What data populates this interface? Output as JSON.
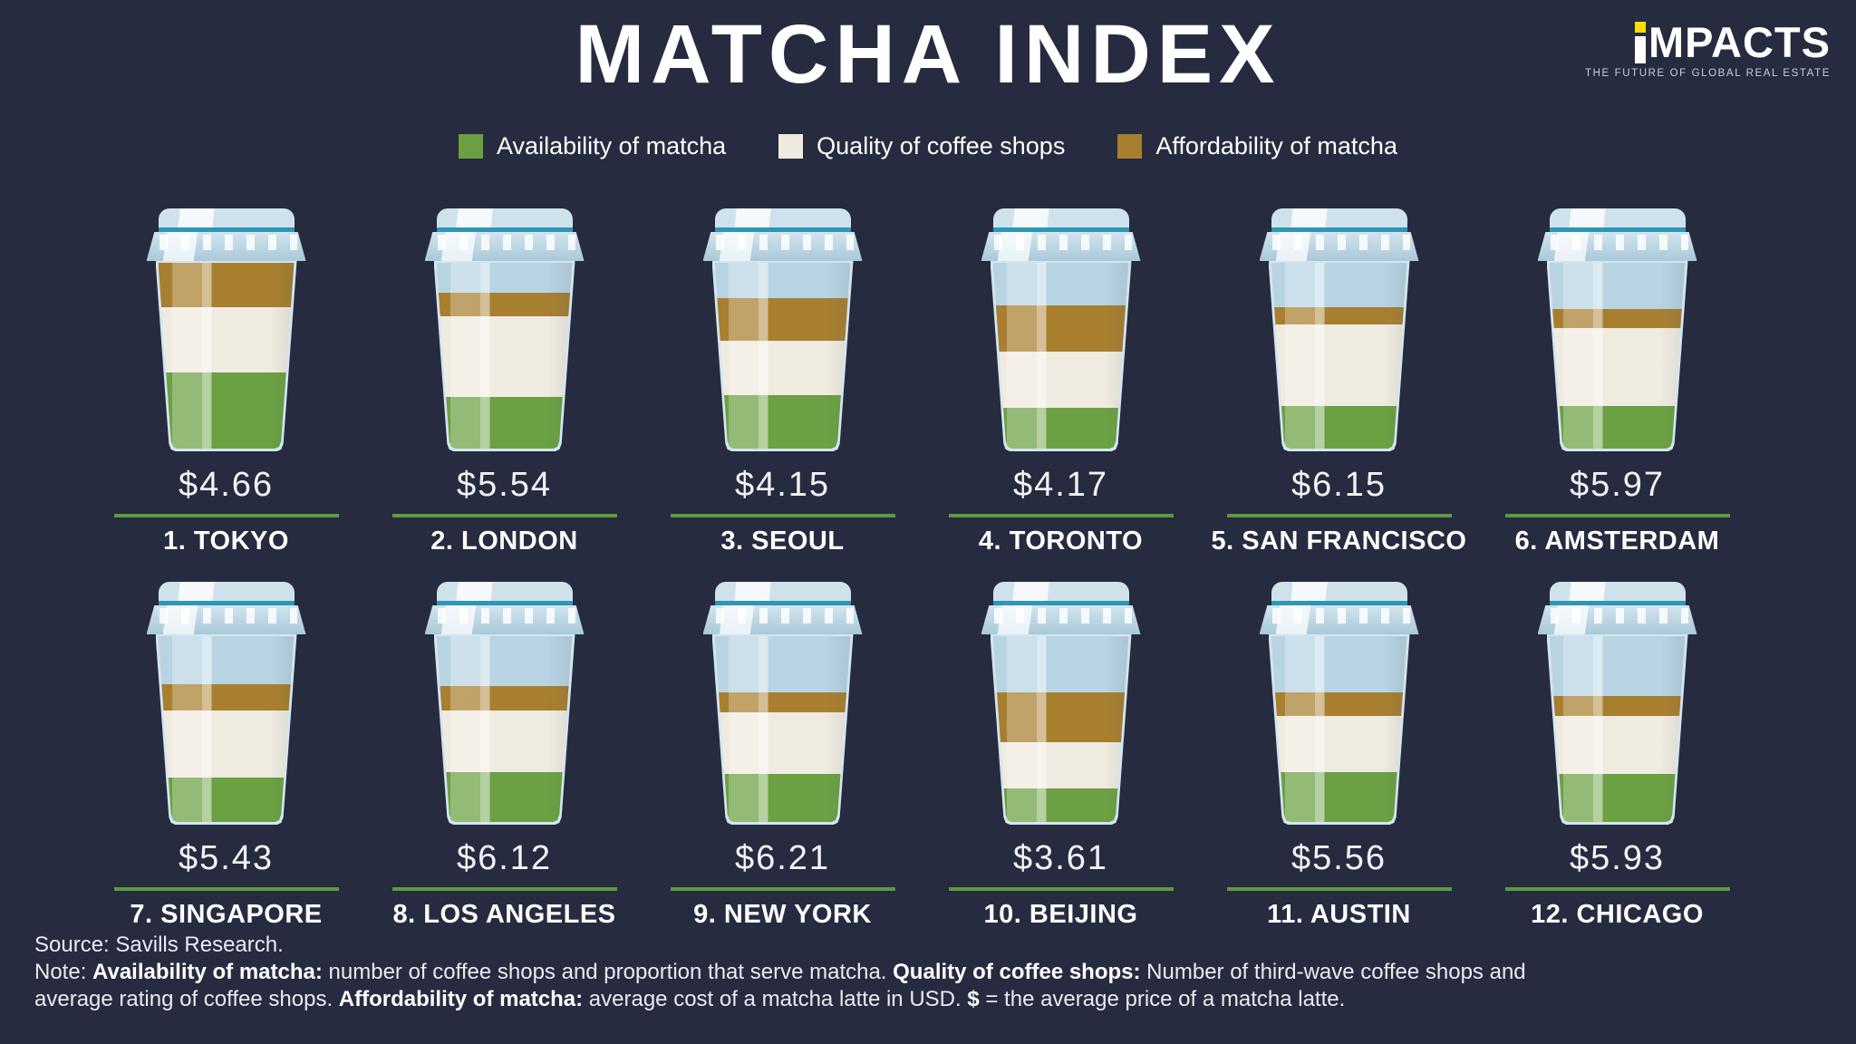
{
  "title": "MATCHA INDEX",
  "logo": {
    "brand": "iMPACTS",
    "display_rest": "MPACTS",
    "tagline": "THE FUTURE OF GLOBAL REAL ESTATE",
    "dot_color": "#ffdf00"
  },
  "legend": {
    "items": [
      {
        "label": "Availability of matcha",
        "color": "#6b9f42"
      },
      {
        "label": "Quality of coffee shops",
        "color": "#efeadf"
      },
      {
        "label": "Affordability of matcha",
        "color": "#a87f2f"
      }
    ]
  },
  "chart_data": {
    "type": "bar",
    "subtype": "stacked-cup-infographic",
    "title": "MATCHA INDEX",
    "description": "Each coffee cup is a stacked bar; segment heights are percent of cup height (top blue portion = unfilled cup). Dollar value = average price of a matcha latte.",
    "segment_order_top_to_bottom": [
      "empty",
      "affordability",
      "quality",
      "availability"
    ],
    "legend_position": "top",
    "cities": [
      {
        "rank": 1,
        "name": "TOKYO",
        "label": "1. TOKYO",
        "price": "$4.66",
        "segments": {
          "empty": 0,
          "affordability": 24,
          "quality": 35,
          "availability": 41
        }
      },
      {
        "rank": 2,
        "name": "LONDON",
        "label": "2. LONDON",
        "price": "$5.54",
        "segments": {
          "empty": 16,
          "affordability": 13,
          "quality": 43,
          "availability": 28
        }
      },
      {
        "rank": 3,
        "name": "SEOUL",
        "label": "3. SEOUL",
        "price": "$4.15",
        "segments": {
          "empty": 19,
          "affordability": 23,
          "quality": 29,
          "availability": 29
        }
      },
      {
        "rank": 4,
        "name": "TORONTO",
        "label": "4. TORONTO",
        "price": "$4.17",
        "segments": {
          "empty": 23,
          "affordability": 25,
          "quality": 30,
          "availability": 22
        }
      },
      {
        "rank": 5,
        "name": "SAN FRANCISCO",
        "label": "5. SAN FRANCISCO",
        "price": "$6.15",
        "segments": {
          "empty": 24,
          "affordability": 9,
          "quality": 44,
          "availability": 23
        }
      },
      {
        "rank": 6,
        "name": "AMSTERDAM",
        "label": "6. AMSTERDAM",
        "price": "$5.97",
        "segments": {
          "empty": 25,
          "affordability": 10,
          "quality": 42,
          "availability": 23
        }
      },
      {
        "rank": 7,
        "name": "SINGAPORE",
        "label": "7. SINGAPORE",
        "price": "$5.43",
        "segments": {
          "empty": 26,
          "affordability": 14,
          "quality": 36,
          "availability": 24
        }
      },
      {
        "rank": 8,
        "name": "LOS ANGELES",
        "label": "8. LOS ANGELES",
        "price": "$6.12",
        "segments": {
          "empty": 27,
          "affordability": 13,
          "quality": 33,
          "availability": 27
        }
      },
      {
        "rank": 9,
        "name": "NEW YORK",
        "label": "9. NEW YORK",
        "price": "$6.21",
        "segments": {
          "empty": 30,
          "affordability": 11,
          "quality": 33,
          "availability": 26
        }
      },
      {
        "rank": 10,
        "name": "BEIJING",
        "label": "10. BEIJING",
        "price": "$3.61",
        "segments": {
          "empty": 30,
          "affordability": 27,
          "quality": 25,
          "availability": 18
        }
      },
      {
        "rank": 11,
        "name": "AUSTIN",
        "label": "11. AUSTIN",
        "price": "$5.56",
        "segments": {
          "empty": 30,
          "affordability": 13,
          "quality": 30,
          "availability": 27
        }
      },
      {
        "rank": 12,
        "name": "CHICAGO",
        "label": "12. CHICAGO",
        "price": "$5.93",
        "segments": {
          "empty": 32,
          "affordability": 11,
          "quality": 31,
          "availability": 26
        }
      }
    ]
  },
  "footer": {
    "source": "Source: Savills Research.",
    "note_parts": [
      {
        "text": "Note: ",
        "bold": false
      },
      {
        "text": "Availability of matcha:",
        "bold": true
      },
      {
        "text": " number of coffee shops and proportion that serve matcha. ",
        "bold": false
      },
      {
        "text": "Quality of coffee shops:",
        "bold": true
      },
      {
        "text": " Number of third-wave coffee shops and average rating of coffee shops. ",
        "bold": false
      },
      {
        "text": "Affordability of matcha:",
        "bold": true
      },
      {
        "text": " average cost of a matcha latte in USD. ",
        "bold": false
      },
      {
        "text": "$",
        "bold": true
      },
      {
        "text": " = the average price of a matcha latte.",
        "bold": false
      }
    ]
  },
  "colors": {
    "background": "#262b40",
    "availability_green": "#6ba043",
    "quality_cream": "#f0ebe0",
    "affordability_brown": "#a87f2f",
    "cup_empty_blue": "#b8d4e3",
    "lid_blue": "#cfe2ec",
    "lid_teal_line": "#2f96b6",
    "underline_green": "#5c9a3c",
    "logo_dot_yellow": "#ffdf00",
    "text_white": "#ffffff"
  }
}
